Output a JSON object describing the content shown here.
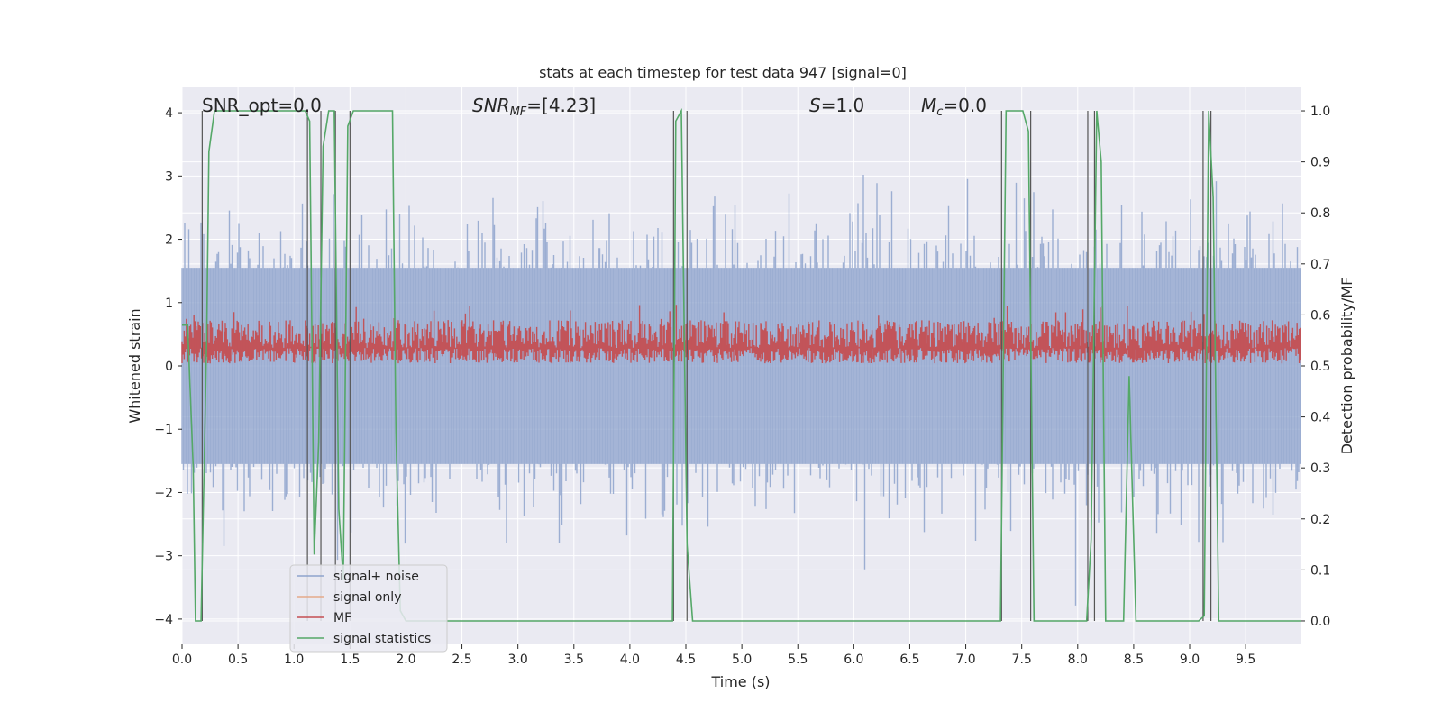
{
  "chart_data": {
    "type": "line",
    "title": "stats at each timestep for test data 947 [signal=0]",
    "xlabel": "Time (s)",
    "ylabel": "Whitened strain",
    "y2label": "Detection probability/MF",
    "xlim": [
      0.0,
      9.99
    ],
    "ylim": [
      -4.4,
      4.4
    ],
    "y2lim": [
      -0.046,
      1.046
    ],
    "x_ticks": [
      0.0,
      0.5,
      1.0,
      1.5,
      2.0,
      2.5,
      3.0,
      3.5,
      4.0,
      4.5,
      5.0,
      5.5,
      6.0,
      6.5,
      7.0,
      7.5,
      8.0,
      8.5,
      9.0,
      9.5
    ],
    "x_tick_labels": [
      "0.0",
      "0.5",
      "1.0",
      "1.5",
      "2.0",
      "2.5",
      "3.0",
      "3.5",
      "4.0",
      "4.5",
      "5.0",
      "5.5",
      "6.0",
      "6.5",
      "7.0",
      "7.5",
      "8.0",
      "8.5",
      "9.0",
      "9.5"
    ],
    "y_ticks": [
      -4,
      -3,
      -2,
      -1,
      0,
      1,
      2,
      3,
      4
    ],
    "y_tick_labels": [
      "−4",
      "−3",
      "−2",
      "−1",
      "0",
      "1",
      "2",
      "3",
      "4"
    ],
    "y2_ticks": [
      0.0,
      0.1,
      0.2,
      0.3,
      0.4,
      0.5,
      0.6,
      0.7,
      0.8,
      0.9,
      1.0
    ],
    "y2_tick_labels": [
      "0.0",
      "0.1",
      "0.2",
      "0.3",
      "0.4",
      "0.5",
      "0.6",
      "0.7",
      "0.8",
      "0.9",
      "1.0"
    ],
    "annotations": {
      "snr_opt": "SNR_opt=0.0",
      "snr_mf_name": "SNR",
      "snr_mf_sub": "MF",
      "snr_mf_value": "=[4.23]",
      "s_name": "S",
      "s_value": "=1.0",
      "mc_name": "M",
      "mc_sub": "c",
      "mc_value": "=0.0"
    },
    "legend": {
      "position": "lower-left",
      "entries": [
        {
          "label": "signal+ noise",
          "color": "#8ea3cc"
        },
        {
          "label": "signal only",
          "color": "#e5a98a"
        },
        {
          "label": "MF",
          "color": "#c44e52"
        },
        {
          "label": "signal statistics",
          "color": "#55a868"
        }
      ]
    },
    "series": [
      {
        "name": "signal statistics",
        "color": "#55a868",
        "x": [
          0.0,
          0.05,
          0.1,
          0.12,
          0.17,
          0.22,
          0.24,
          0.29,
          0.34,
          1.1,
          1.14,
          1.18,
          1.22,
          1.26,
          1.31,
          1.36,
          1.4,
          1.44,
          1.48,
          1.53,
          1.58,
          1.62,
          1.88,
          1.91,
          1.95,
          2.0,
          4.33,
          4.38,
          4.41,
          4.46,
          4.51,
          4.56,
          7.31,
          7.36,
          7.41,
          7.51,
          7.56,
          7.61,
          8.08,
          8.12,
          8.17,
          8.21,
          8.25,
          8.31,
          8.41,
          8.46,
          8.52,
          9.08,
          9.13,
          9.17,
          9.21,
          9.26,
          9.99
        ],
        "y": [
          0.58,
          0.58,
          0.3,
          0.0,
          0.0,
          0.55,
          0.92,
          1.0,
          1.0,
          1.0,
          0.98,
          0.13,
          0.35,
          0.93,
          1.0,
          1.0,
          0.22,
          0.08,
          0.97,
          1.0,
          1.0,
          1.0,
          1.0,
          0.37,
          0.02,
          0.0,
          0.0,
          0.0,
          0.98,
          1.0,
          0.15,
          0.0,
          0.0,
          1.0,
          1.0,
          1.0,
          0.96,
          0.0,
          0.0,
          0.16,
          1.0,
          0.9,
          0.0,
          0.0,
          0.0,
          0.48,
          0.0,
          0.0,
          0.01,
          1.0,
          0.83,
          0.0,
          0.0
        ]
      }
    ],
    "noise_description": "signal+ noise: whitened strain noise, roughly between -3.8 and 3.8",
    "mf_description": "MF: matched filter output, roughly 0.5 to 0.6 on detection-probability axis",
    "event_lines_x": [
      0.18,
      1.12,
      1.24,
      1.37,
      1.5,
      4.39,
      4.51,
      7.32,
      7.58,
      8.09,
      8.15,
      9.12,
      9.19
    ]
  }
}
